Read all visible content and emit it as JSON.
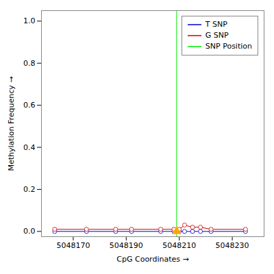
{
  "chart_data": {
    "type": "line",
    "xlabel": "CpG Coordinates",
    "ylabel": "Methylation Frequency",
    "x": [
      5048163,
      5048175,
      5048186,
      5048192,
      5048203,
      5048208,
      5048210,
      5048212,
      5048215,
      5048218,
      5048222,
      5048235
    ],
    "series": [
      {
        "name": "T SNP",
        "color": "#0000cc",
        "marker": "circle",
        "values": [
          0.0,
          0.0,
          0.0,
          0.0,
          0.0,
          0.0,
          0.0,
          0.0,
          0.0,
          0.0,
          0.0,
          0.0
        ]
      },
      {
        "name": "G SNP",
        "color": "#cc0000",
        "marker": "circle",
        "values": [
          0.01,
          0.01,
          0.01,
          0.01,
          0.01,
          0.01,
          0.01,
          0.03,
          0.02,
          0.02,
          0.01,
          0.01
        ]
      }
    ],
    "snp_position": {
      "name": "SNP Position",
      "x": 5048209,
      "color": "#00ee00"
    },
    "triangle": {
      "x": 5048209,
      "y": 0.0,
      "color": "#ffa500",
      "marker": "triangle"
    },
    "xlim": [
      5048158,
      5048242
    ],
    "ylim": [
      -0.025,
      1.05
    ],
    "xticks": [
      5048170,
      5048190,
      5048210,
      5048230
    ],
    "yticks": [
      {
        "value": 0.0,
        "label": "0.0"
      },
      0.2,
      0.4,
      0.6,
      0.8,
      {
        "value": 1.0,
        "label": "1.0"
      }
    ],
    "grid": false,
    "legend": "upper right"
  }
}
